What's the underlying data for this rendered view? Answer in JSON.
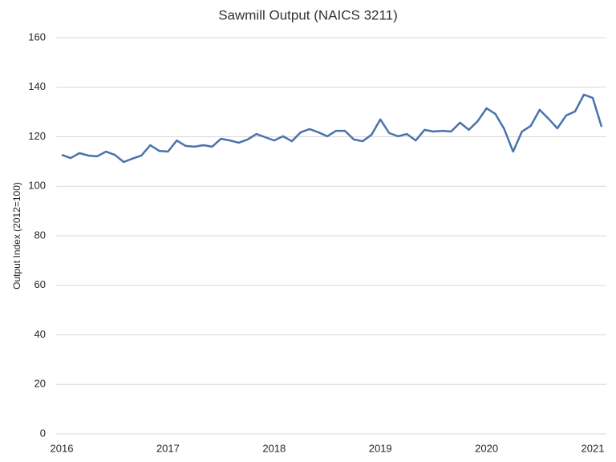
{
  "chart_data": {
    "type": "line",
    "title": "Sawmill Output (NAICS 3211)",
    "y_label": "Output Index (2012=100)",
    "categories": [
      "2016",
      null,
      null,
      null,
      null,
      null,
      null,
      null,
      null,
      null,
      null,
      null,
      "2017",
      null,
      null,
      null,
      null,
      null,
      null,
      null,
      null,
      null,
      null,
      null,
      "2018",
      null,
      null,
      null,
      null,
      null,
      null,
      null,
      null,
      null,
      null,
      null,
      "2019",
      null,
      null,
      null,
      null,
      null,
      null,
      null,
      null,
      null,
      null,
      null,
      "2020",
      null,
      null,
      null,
      null,
      null,
      null,
      null,
      null,
      null,
      null,
      null,
      "2021",
      null
    ],
    "series": [
      {
        "name": "Sawmill Output",
        "color": "#4a72ad",
        "values": [
          112.7,
          111.4,
          113.4,
          112.4,
          112.1,
          114.0,
          112.7,
          109.8,
          111.2,
          112.4,
          116.6,
          114.3,
          114.0,
          118.5,
          116.3,
          116.0,
          116.6,
          116.0,
          119.2,
          118.5,
          117.6,
          118.9,
          121.1,
          119.8,
          118.5,
          120.2,
          118.2,
          121.8,
          123.1,
          121.8,
          120.2,
          122.4,
          122.4,
          118.9,
          118.2,
          120.8,
          127.0,
          121.5,
          120.2,
          121.1,
          118.5,
          122.8,
          122.1,
          122.4,
          122.1,
          125.7,
          122.8,
          126.3,
          131.5,
          129.2,
          123.1,
          114.0,
          122.1,
          124.4,
          130.9,
          127.3,
          123.4,
          128.6,
          130.2,
          137.0,
          135.7,
          124.0
        ]
      }
    ],
    "ylim": [
      0,
      160
    ],
    "yticks": [
      0,
      20,
      40,
      60,
      80,
      100,
      120,
      140,
      160
    ],
    "grid": true
  }
}
